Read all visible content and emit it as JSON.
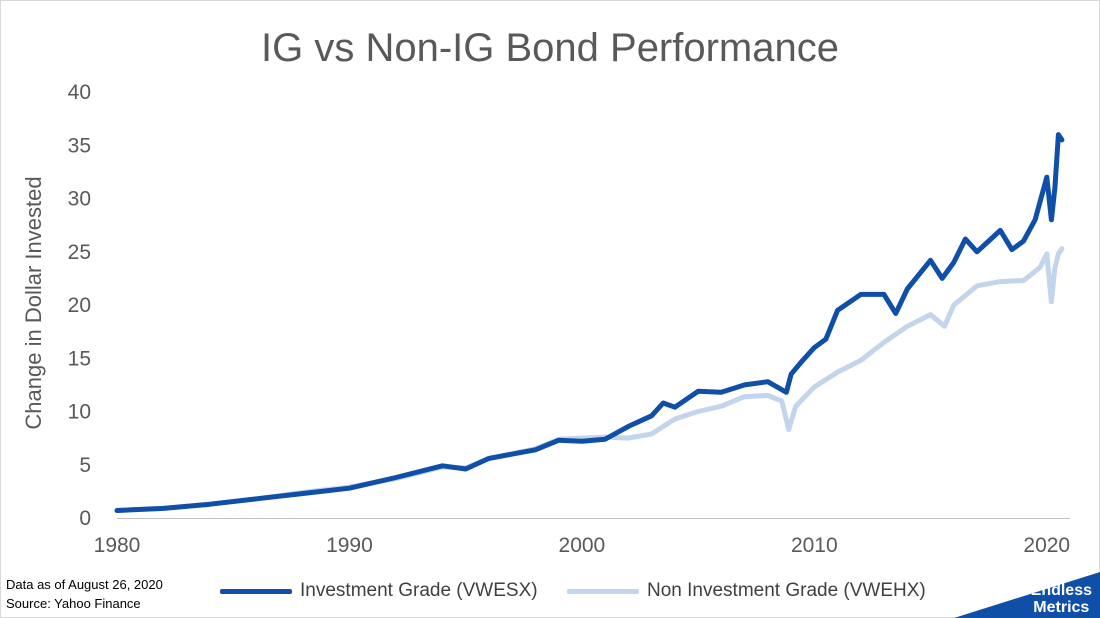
{
  "chart_data": {
    "type": "line",
    "title": "IG vs Non-IG Bond Performance",
    "ylabel": "Change in Dollar Invested",
    "xlabel": "",
    "xlim": [
      1980,
      2021
    ],
    "ylim": [
      0,
      40
    ],
    "x_ticks": [
      1980,
      1990,
      2000,
      2010,
      2020
    ],
    "y_ticks": [
      0,
      5,
      10,
      15,
      20,
      25,
      30,
      35,
      40
    ],
    "grid": false,
    "legend_position": "bottom",
    "series": [
      {
        "name": "Investment Grade (VWESX)",
        "color": "#0f4fa8",
        "x": [
          1980,
          1982,
          1984,
          1986,
          1988,
          1990,
          1992,
          1994,
          1995,
          1996,
          1998,
          1999,
          2000,
          2001,
          2002,
          2003,
          2003.5,
          2004,
          2005,
          2006,
          2007,
          2008,
          2008.8,
          2009,
          2009.5,
          2010,
          2010.5,
          2011,
          2012,
          2013,
          2013.5,
          2014,
          2015,
          2015.5,
          2016,
          2016.5,
          2017,
          2017.5,
          2018,
          2018.5,
          2019,
          2019.5,
          2020.0,
          2020.2,
          2020.35,
          2020.5,
          2020.65
        ],
        "values": [
          0.7,
          0.9,
          1.3,
          1.8,
          2.3,
          2.8,
          3.8,
          4.9,
          4.6,
          5.6,
          6.4,
          7.3,
          7.2,
          7.4,
          8.6,
          9.6,
          10.8,
          10.4,
          11.9,
          11.8,
          12.5,
          12.8,
          11.8,
          13.5,
          14.8,
          16.0,
          16.8,
          19.5,
          21.0,
          21.0,
          19.2,
          21.5,
          24.2,
          22.5,
          24.0,
          26.2,
          25.0,
          26.0,
          27.0,
          25.2,
          26.0,
          28.0,
          32.0,
          28.0,
          31.0,
          36.0,
          35.5
        ]
      },
      {
        "name": "Non Investment Grade (VWEHX)",
        "color": "#c3d5ec",
        "x": [
          1980,
          1982,
          1984,
          1986,
          1988,
          1990,
          1992,
          1994,
          1995,
          1996,
          1998,
          1999,
          2000,
          2001,
          2002,
          2003,
          2004,
          2005,
          2006,
          2007,
          2008,
          2008.6,
          2008.9,
          2009.2,
          2010,
          2011,
          2012,
          2013,
          2014,
          2015,
          2015.6,
          2016,
          2017,
          2018,
          2019,
          2019.7,
          2020.0,
          2020.2,
          2020.35,
          2020.5,
          2020.65
        ],
        "values": [
          0.7,
          0.9,
          1.3,
          1.8,
          2.4,
          2.9,
          3.7,
          4.8,
          4.7,
          5.6,
          6.5,
          7.4,
          7.5,
          7.6,
          7.5,
          7.9,
          9.3,
          10.0,
          10.5,
          11.4,
          11.5,
          11.0,
          8.3,
          10.5,
          12.3,
          13.7,
          14.8,
          16.5,
          18.0,
          19.1,
          18.0,
          20.0,
          21.8,
          22.2,
          22.3,
          23.5,
          24.8,
          20.3,
          23.5,
          24.8,
          25.3
        ]
      }
    ]
  },
  "footnote": {
    "date": "Data as of August 26, 2020",
    "source": "Source: Yahoo Finance"
  },
  "brand": {
    "line1": "Endless",
    "line2": "Metrics",
    "color": "#0f4fa8"
  }
}
